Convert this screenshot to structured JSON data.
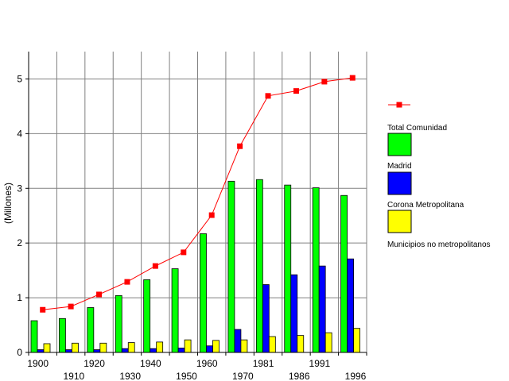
{
  "chart_data": {
    "type": "bar",
    "categories": [
      "1900",
      "1910",
      "1920",
      "1930",
      "1940",
      "1950",
      "1960",
      "1970",
      "1981",
      "1986",
      "1991",
      "1996"
    ],
    "ylabel": "(Millones)",
    "ylim": [
      0,
      5.5
    ],
    "yticks": [
      "0",
      "1",
      "2",
      "3",
      "4",
      "5"
    ],
    "grid": true,
    "legend_position": "right",
    "series": [
      {
        "name": "Total Comunidad",
        "kind": "line",
        "color": "#ff0000",
        "values": [
          0.78,
          0.84,
          1.06,
          1.29,
          1.58,
          1.83,
          2.51,
          3.77,
          4.69,
          4.78,
          4.95,
          5.02
        ]
      },
      {
        "name": "Madrid",
        "kind": "bar",
        "color": "#00ff00",
        "values": [
          0.58,
          0.62,
          0.82,
          1.04,
          1.33,
          1.53,
          2.17,
          3.13,
          3.16,
          3.06,
          3.01,
          2.87
        ]
      },
      {
        "name": "Corona Metropolitana",
        "kind": "bar",
        "color": "#0000ff",
        "values": [
          0.05,
          0.05,
          0.05,
          0.07,
          0.07,
          0.08,
          0.12,
          0.42,
          1.24,
          1.42,
          1.58,
          1.71
        ]
      },
      {
        "name": "Municipios no metropolitanos",
        "kind": "bar",
        "color": "#ffff00",
        "values": [
          0.16,
          0.17,
          0.17,
          0.18,
          0.19,
          0.23,
          0.22,
          0.23,
          0.29,
          0.31,
          0.36,
          0.44
        ]
      }
    ]
  }
}
